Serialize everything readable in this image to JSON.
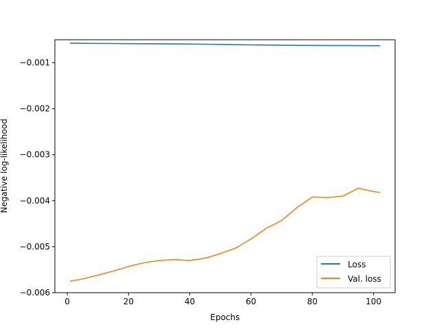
{
  "chart_data": {
    "type": "line",
    "title": "",
    "xlabel": "Epochs",
    "ylabel": "Negative log-likelihood",
    "xlim": [
      -4.05,
      107.05
    ],
    "ylim": [
      -0.006,
      -0.0005
    ],
    "xticks": [
      0,
      20,
      40,
      60,
      80,
      100
    ],
    "xtick_labels": [
      "0",
      "20",
      "40",
      "60",
      "80",
      "100"
    ],
    "yticks": [
      -0.006,
      -0.005,
      -0.004,
      -0.003,
      -0.002,
      -0.001
    ],
    "ytick_labels": [
      "−0.006",
      "−0.005",
      "−0.004",
      "−0.003",
      "−0.002",
      "−0.001"
    ],
    "grid": false,
    "legend_position": "lower-right",
    "x": [
      1,
      5,
      10,
      15,
      20,
      25,
      30,
      35,
      40,
      45,
      50,
      55,
      60,
      65,
      70,
      75,
      80,
      85,
      90,
      95,
      100,
      102
    ],
    "series": [
      {
        "name": "Loss",
        "color": "#1f77b4",
        "values": [
          -0.000575,
          -0.000578,
          -0.00058,
          -0.000582,
          -0.000584,
          -0.000586,
          -0.000588,
          -0.00059,
          -0.000593,
          -0.000597,
          -0.000602,
          -0.000607,
          -0.000612,
          -0.000615,
          -0.000618,
          -0.000621,
          -0.000624,
          -0.000626,
          -0.000625,
          -0.000627,
          -0.000629,
          -0.00063
        ]
      },
      {
        "name": "Val. loss",
        "color": "#ff7f0e",
        "values": [
          -0.00575,
          -0.0057,
          -0.00562,
          -0.00553,
          -0.00543,
          -0.00535,
          -0.0053,
          -0.00528,
          -0.0053,
          -0.00525,
          -0.00515,
          -0.00503,
          -0.00483,
          -0.0046,
          -0.00443,
          -0.00415,
          -0.00392,
          -0.00393,
          -0.0039,
          -0.00373,
          -0.0038,
          -0.00382
        ]
      }
    ]
  }
}
